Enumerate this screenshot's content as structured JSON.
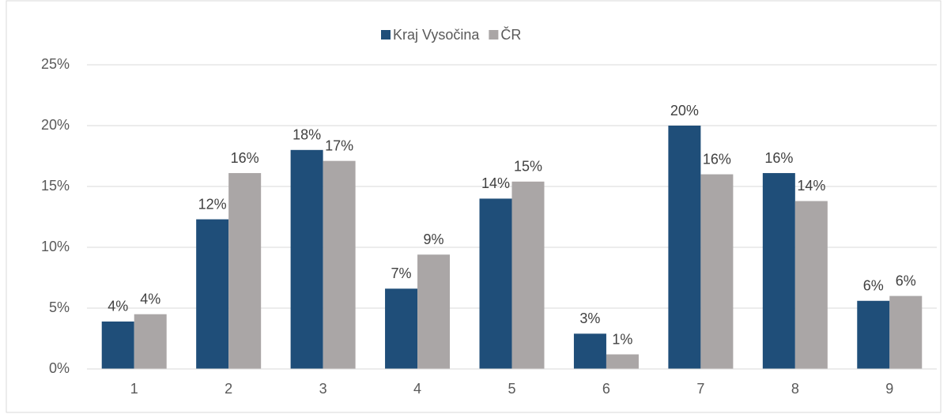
{
  "chart_data": {
    "type": "bar",
    "categories": [
      "1",
      "2",
      "3",
      "4",
      "5",
      "6",
      "7",
      "8",
      "9"
    ],
    "series": [
      {
        "name": "Kraj Vysočina",
        "color": "#1f4e79",
        "values": [
          3.9,
          12.3,
          18.0,
          6.6,
          14.0,
          2.9,
          20.0,
          16.1,
          5.6
        ],
        "value_labels": [
          "4%",
          "12%",
          "18%",
          "7%",
          "14%",
          "3%",
          "20%",
          "16%",
          "6%"
        ]
      },
      {
        "name": "ČR",
        "color": "#aaa6a6",
        "values": [
          4.5,
          16.1,
          17.1,
          9.4,
          15.4,
          1.2,
          16.0,
          13.8,
          6.0
        ],
        "value_labels": [
          "4%",
          "16%",
          "17%",
          "9%",
          "15%",
          "1%",
          "16%",
          "14%",
          "6%"
        ]
      }
    ],
    "ylim": [
      0,
      25
    ],
    "yticks": [
      {
        "value": 0,
        "label": "0%"
      },
      {
        "value": 5,
        "label": "5%"
      },
      {
        "value": 10,
        "label": "10%"
      },
      {
        "value": 15,
        "label": "15%"
      },
      {
        "value": 20,
        "label": "20%"
      },
      {
        "value": 25,
        "label": "25%"
      }
    ],
    "grid": true,
    "legend": "top"
  }
}
